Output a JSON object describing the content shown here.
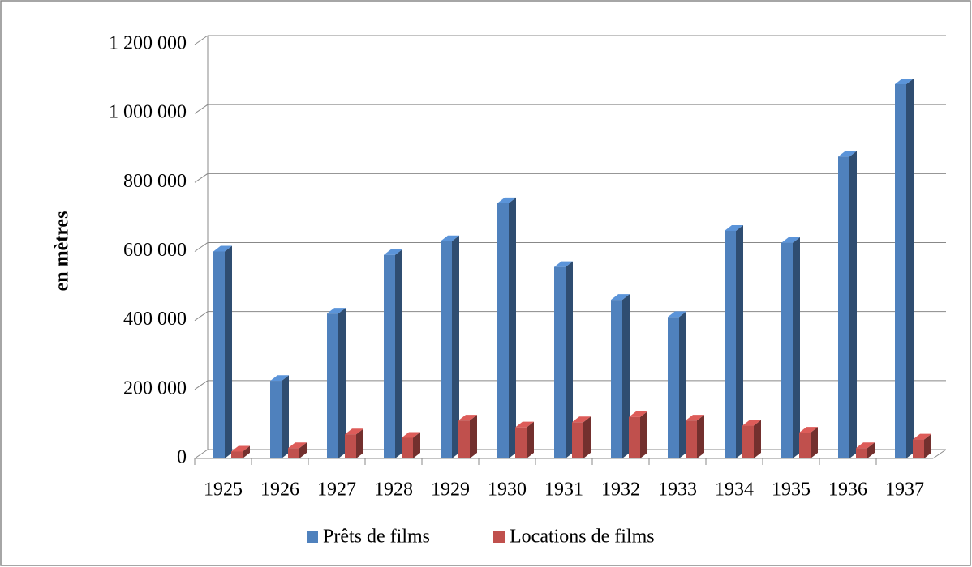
{
  "chart_data": {
    "type": "bar3d",
    "y_label": "en mètres",
    "categories": [
      "1925",
      "1926",
      "1927",
      "1928",
      "1929",
      "1930",
      "1931",
      "1932",
      "1933",
      "1934",
      "1935",
      "1936",
      "1937"
    ],
    "series": [
      {
        "name": "Prêts de films",
        "color": "#4f81bd",
        "values": [
          600000,
          225000,
          420000,
          590000,
          630000,
          740000,
          555000,
          460000,
          410000,
          660000,
          625000,
          875000,
          1085000
        ]
      },
      {
        "name": "Locations de films",
        "color": "#c0504d",
        "values": [
          20000,
          30000,
          70000,
          60000,
          110000,
          90000,
          105000,
          120000,
          110000,
          95000,
          75000,
          30000,
          55000
        ]
      }
    ],
    "ylim": [
      0,
      1200000
    ],
    "yticks": [
      0,
      {
        "value": 200000,
        "label": "200 000"
      },
      {
        "value": 400000,
        "label": "400 000"
      },
      {
        "value": 600000,
        "label": "600 000"
      },
      {
        "value": 800000,
        "label": "800 000"
      },
      {
        "value": 1000000,
        "label": "1 000 000"
      },
      {
        "value": 1200000,
        "label": "1 200 000"
      }
    ],
    "grid": true,
    "legend": "bottom"
  }
}
